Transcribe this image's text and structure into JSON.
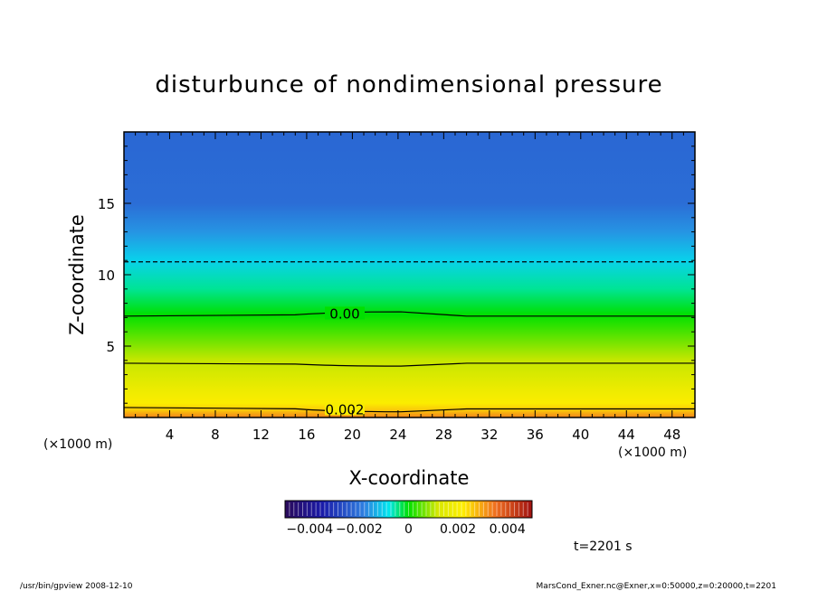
{
  "chart_data": {
    "type": "heatmap",
    "title": "disturbunce of nondimensional pressure",
    "xlabel": "X-coordinate",
    "ylabel": "Z-coordinate",
    "x_unit": "(×1000 m)",
    "z_unit": "(×1000 m)",
    "xlim": [
      0,
      50
    ],
    "ylim": [
      0,
      20
    ],
    "xticks": [
      4,
      8,
      12,
      16,
      20,
      24,
      28,
      32,
      36,
      40,
      44,
      48
    ],
    "yticks": [
      5,
      10,
      15
    ],
    "colorbar": {
      "min": -0.005,
      "max": 0.005,
      "ticks": [
        {
          "value": -0.004,
          "label": "−0.004"
        },
        {
          "value": -0.002,
          "label": "−0.002"
        },
        {
          "value": 0,
          "label": "0"
        },
        {
          "value": 0.002,
          "label": "0.002"
        },
        {
          "value": 0.004,
          "label": "0.004"
        }
      ]
    },
    "field_profile": [
      {
        "z": 0.0,
        "value": 0.0033
      },
      {
        "z": 0.5,
        "value": 0.0026
      },
      {
        "z": 1.0,
        "value": 0.0021
      },
      {
        "z": 2.0,
        "value": 0.0017
      },
      {
        "z": 4.0,
        "value": 0.0011
      },
      {
        "z": 6.0,
        "value": 0.0004
      },
      {
        "z": 7.2,
        "value": 0.0
      },
      {
        "z": 9.0,
        "value": -0.0005
      },
      {
        "z": 11.0,
        "value": -0.001
      },
      {
        "z": 13.0,
        "value": -0.0016
      },
      {
        "z": 15.0,
        "value": -0.0021
      },
      {
        "z": 20.0,
        "value": -0.0022
      }
    ],
    "contours": [
      {
        "level": 0.002,
        "label": "0.002",
        "style": "solid",
        "z_left": 0.7,
        "z_mid": 0.4,
        "z_right": 0.6
      },
      {
        "level": 0.001,
        "label": "",
        "style": "solid",
        "z_left": 3.8,
        "z_mid": 3.6,
        "z_right": 3.8
      },
      {
        "level": 0.0,
        "label": "0.00",
        "style": "solid",
        "z_left": 7.1,
        "z_mid": 7.4,
        "z_right": 7.1
      },
      {
        "level": -0.001,
        "label": "",
        "style": "dashed",
        "z_left": 10.9,
        "z_mid": 10.9,
        "z_right": 10.9
      }
    ],
    "time_label": "t=2201 s"
  },
  "footer": {
    "left": "/usr/bin/gpview  2008-12-10",
    "right": "MarsCond_Exner.nc@Exner,x=0:50000,z=0:20000,t=2201"
  }
}
